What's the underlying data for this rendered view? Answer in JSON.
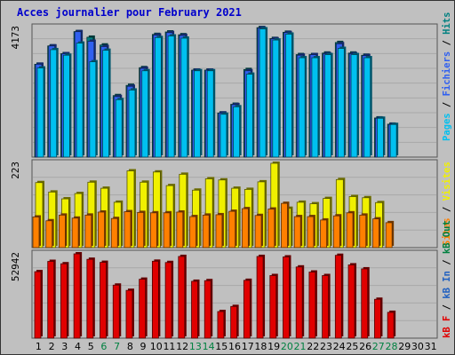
{
  "title": "Acces journalier pour February 2021",
  "colors": {
    "background": "#c0c0c0",
    "panel_border": "#555555",
    "grid": "#a8a8a8",
    "pages": "#00c0f0",
    "fichiers": "#3060f0",
    "hits": "#008080",
    "visites": "#f0f000",
    "sites": "#ff8000",
    "kb_in": "#2060c0",
    "kb_out": "#008040",
    "kb_f": "#e00000",
    "day_normal": "#000000",
    "day_weekend": "#008040"
  },
  "chart_data": [
    {
      "type": "bar",
      "name": "hits-fichiers-pages",
      "ymax_label": "4173",
      "ylim": [
        0,
        4173
      ],
      "x": [
        1,
        2,
        3,
        4,
        5,
        6,
        7,
        8,
        9,
        10,
        11,
        12,
        13,
        14,
        15,
        16,
        17,
        18,
        19,
        20,
        21,
        22,
        23,
        24,
        25,
        26,
        27,
        28,
        29,
        30,
        31
      ],
      "series": [
        {
          "name": "Pages",
          "color_key": "pages",
          "values": [
            2870,
            3460,
            3280,
            3670,
            3070,
            3440,
            1850,
            2160,
            2780,
            3850,
            3900,
            3830,
            2780,
            2780,
            1380,
            1620,
            2670,
            4130,
            3770,
            3960,
            3200,
            3200,
            3300,
            3500,
            3300,
            3200,
            1250,
            1050,
            0,
            0,
            0
          ]
        },
        {
          "name": "Fichiers",
          "color_key": "fichiers",
          "values": [
            2990,
            3580,
            3330,
            4040,
            3730,
            3560,
            1950,
            2280,
            2860,
            3930,
            4010,
            3920,
            2800,
            2800,
            1420,
            1690,
            2780,
            4160,
            3810,
            4010,
            3280,
            3300,
            3330,
            3650,
            3330,
            3270,
            1250,
            1050,
            0,
            0,
            0
          ]
        },
        {
          "name": "Hits",
          "color_key": "hits",
          "values": [
            2990,
            3580,
            3330,
            4040,
            3860,
            3610,
            1980,
            2310,
            2880,
            3950,
            4030,
            3940,
            2800,
            2800,
            1420,
            1700,
            2820,
            4170,
            3820,
            4020,
            3300,
            3300,
            3350,
            3690,
            3350,
            3280,
            1260,
            1060,
            0,
            0,
            0
          ]
        }
      ]
    },
    {
      "type": "bar",
      "name": "sites-visites",
      "ymax_label": "223",
      "ylim": [
        0,
        223
      ],
      "x": [
        1,
        2,
        3,
        4,
        5,
        6,
        7,
        8,
        9,
        10,
        11,
        12,
        13,
        14,
        15,
        16,
        17,
        18,
        19,
        20,
        21,
        22,
        23,
        24,
        25,
        26,
        27,
        28,
        29,
        30,
        31
      ],
      "series": [
        {
          "name": "Visites",
          "color_key": "visites",
          "values": [
            172,
            147,
            129,
            143,
            173,
            157,
            120,
            203,
            173,
            200,
            164,
            194,
            152,
            182,
            179,
            157,
            154,
            174,
            223,
            104,
            120,
            116,
            130,
            180,
            135,
            132,
            119,
            0,
            0,
            0,
            0
          ]
        },
        {
          "name": "Sites",
          "color_key": "sites",
          "values": [
            81,
            71,
            86,
            78,
            86,
            94,
            77,
            95,
            93,
            92,
            92,
            94,
            82,
            86,
            87,
            96,
            103,
            85,
            102,
            117,
            82,
            82,
            73,
            84,
            92,
            86,
            76,
            66,
            0,
            0,
            0
          ]
        }
      ]
    },
    {
      "type": "bar",
      "name": "volume",
      "ymax_label": "52942",
      "ylim": [
        0,
        52942
      ],
      "x": [
        1,
        2,
        3,
        4,
        5,
        6,
        7,
        8,
        9,
        10,
        11,
        12,
        13,
        14,
        15,
        16,
        17,
        18,
        19,
        20,
        21,
        22,
        23,
        24,
        25,
        26,
        27,
        28,
        29,
        30,
        31
      ],
      "series": [
        {
          "name": "KB F",
          "color_key": "kb_f",
          "values": [
            41750,
            48200,
            46700,
            52942,
            49500,
            47600,
            33300,
            30000,
            37000,
            48300,
            47500,
            51300,
            35700,
            36100,
            16700,
            19900,
            36300,
            51300,
            39300,
            51000,
            44700,
            41500,
            39300,
            52000,
            46000,
            43500,
            24400,
            16200,
            0,
            0,
            0
          ]
        }
      ]
    }
  ],
  "x_axis": {
    "labels": [
      "1",
      "2",
      "3",
      "4",
      "5",
      "6",
      "7",
      "8",
      "9",
      "10",
      "11",
      "12",
      "13",
      "14",
      "15",
      "16",
      "17",
      "18",
      "19",
      "20",
      "21",
      "22",
      "23",
      "24",
      "25",
      "26",
      "27",
      "28",
      "29",
      "30",
      "31"
    ],
    "weekend_days": [
      6,
      7,
      13,
      14,
      20,
      21,
      27,
      28
    ]
  },
  "legends": {
    "top": [
      {
        "text": "Pages",
        "color_key": "pages"
      },
      {
        "text": " / ",
        "color_key": "day_normal"
      },
      {
        "text": "Fichiers",
        "color_key": "fichiers"
      },
      {
        "text": " / ",
        "color_key": "day_normal"
      },
      {
        "text": "Hits",
        "color_key": "hits"
      }
    ],
    "middle": [
      {
        "text": "Sites",
        "color_key": "sites"
      },
      {
        "text": " / ",
        "color_key": "day_normal"
      },
      {
        "text": "Visites",
        "color_key": "visites"
      }
    ],
    "bottom": [
      {
        "text": "kB F",
        "color_key": "kb_f"
      },
      {
        "text": " / ",
        "color_key": "day_normal"
      },
      {
        "text": "kB In",
        "color_key": "kb_in"
      },
      {
        "text": " / ",
        "color_key": "day_normal"
      },
      {
        "text": "kB Out",
        "color_key": "kb_out"
      }
    ]
  }
}
